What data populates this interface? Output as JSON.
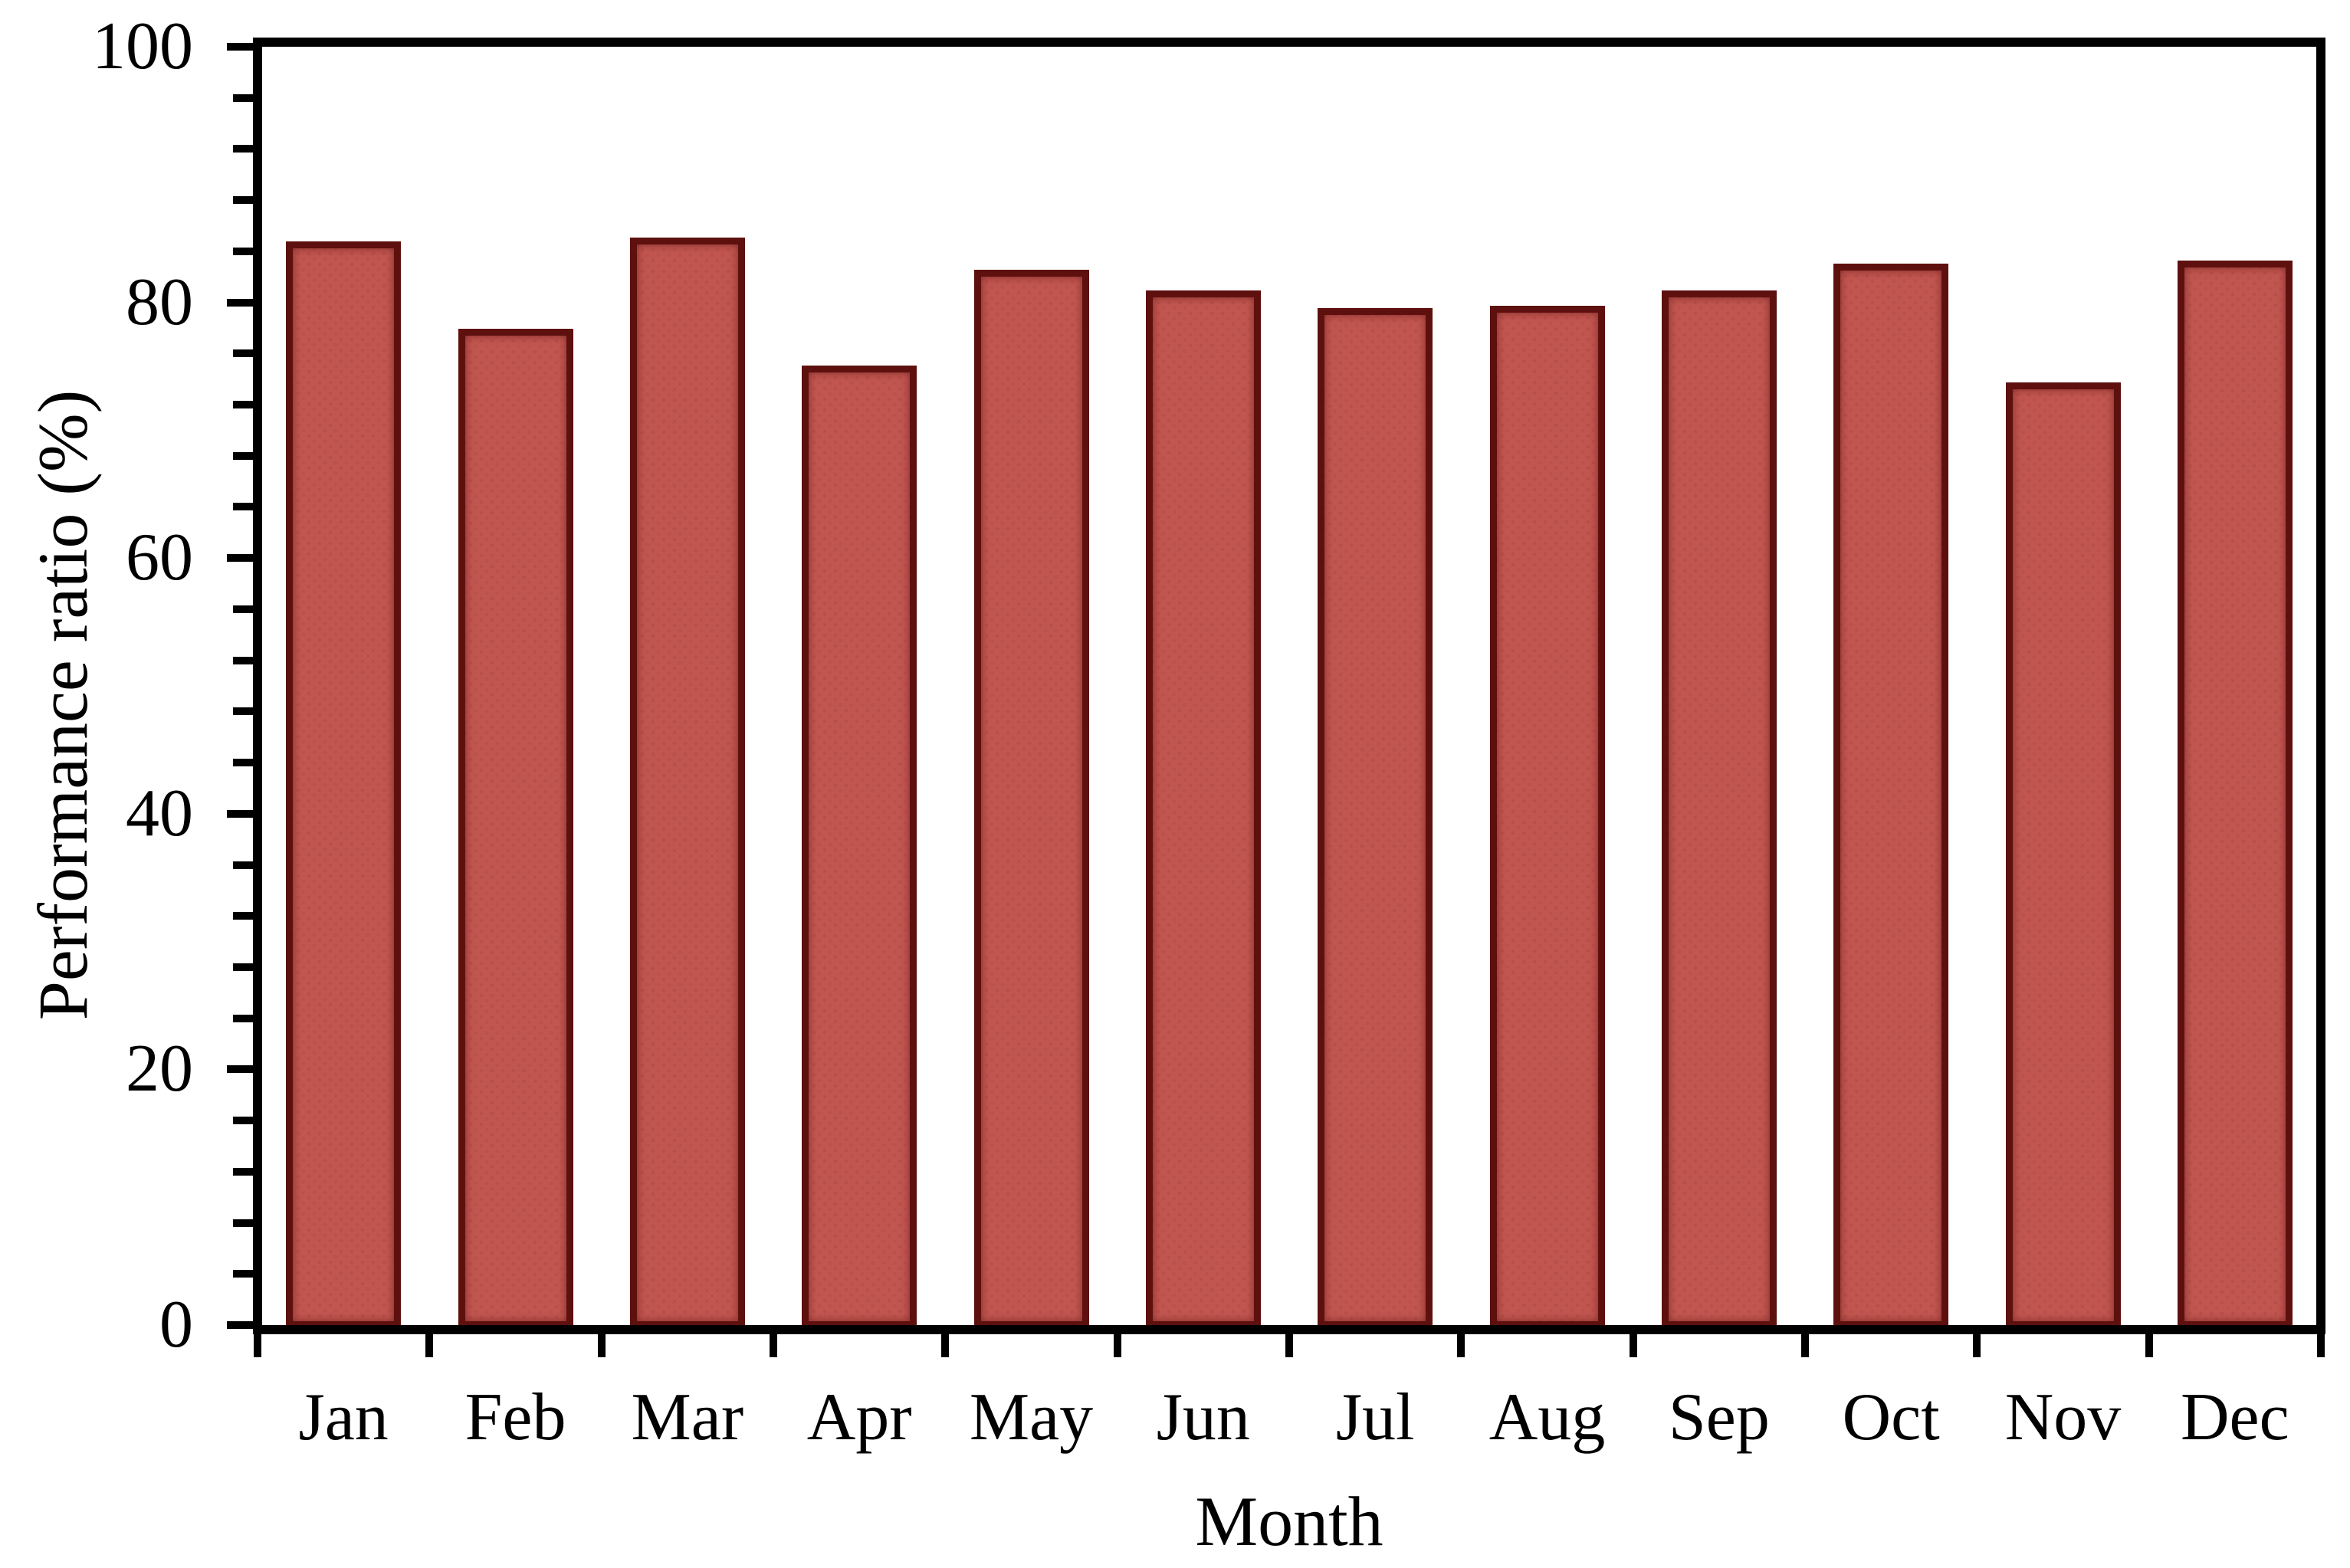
{
  "chart_data": {
    "type": "bar",
    "title": "",
    "xlabel": "Month",
    "ylabel": "Performance ratio (%)",
    "categories": [
      "Jan",
      "Feb",
      "Mar",
      "Apr",
      "May",
      "Jun",
      "Jul",
      "Aug",
      "Sep",
      "Oct",
      "Nov",
      "Dec"
    ],
    "series": [
      {
        "name": "Performance ratio",
        "values": [
          85.0,
          78.2,
          85.3,
          75.3,
          82.8,
          81.2,
          79.8,
          80.0,
          81.2,
          83.3,
          74.0,
          83.5
        ]
      }
    ],
    "ylim": [
      0,
      100
    ],
    "yticks": [
      0,
      20,
      40,
      60,
      80,
      100
    ],
    "y_minor_tick_step": 4,
    "grid": "off",
    "legend": "none",
    "plot_frame": "full-box",
    "tick_direction": "out",
    "bar_fill_color": "#c1554f",
    "bar_border_color": "#5e100e",
    "axis_color": "#000000",
    "text_color": "#000000",
    "background_color": "#ffffff"
  }
}
